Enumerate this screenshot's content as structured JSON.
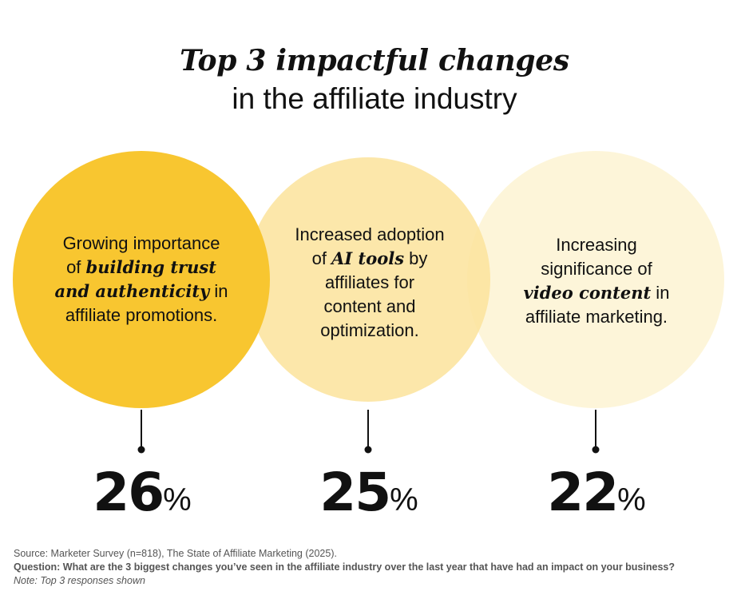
{
  "title": {
    "line1": "Top 3 impactful changes",
    "line2": "in the affiliate industry"
  },
  "chart_data": {
    "type": "bubble",
    "unit": "%",
    "categories": [
      "Growing importance of building trust and authenticity in affiliate promotions.",
      "Increased adoption of AI tools by affiliates for content and optimization.",
      "Increasing significance of video content in affiliate marketing."
    ],
    "values": [
      26,
      25,
      22
    ],
    "colors": [
      "#F8C630",
      "#FBE39B",
      "#FDF2D0"
    ]
  },
  "bubbles": [
    {
      "text_lines": [
        [
          {
            "t": "Growing importance"
          }
        ],
        [
          {
            "t": "of "
          },
          {
            "t": "building trust",
            "em": true
          }
        ],
        [
          {
            "t": "and authenticity",
            "em": true
          },
          {
            "t": " in"
          }
        ],
        [
          {
            "t": "affiliate promotions."
          }
        ]
      ],
      "value_label": "26",
      "percent_sign": "%"
    },
    {
      "text_lines": [
        [
          {
            "t": "Increased adoption"
          }
        ],
        [
          {
            "t": "of "
          },
          {
            "t": "AI tools",
            "em": true
          },
          {
            "t": " by"
          }
        ],
        [
          {
            "t": "affiliates for"
          }
        ],
        [
          {
            "t": "content and"
          }
        ],
        [
          {
            "t": "optimization."
          }
        ]
      ],
      "value_label": "25",
      "percent_sign": "%"
    },
    {
      "text_lines": [
        [
          {
            "t": "Increasing"
          }
        ],
        [
          {
            "t": "significance of"
          }
        ],
        [
          {
            "t": "video content",
            "em": true
          },
          {
            "t": " in"
          }
        ],
        [
          {
            "t": "affiliate marketing."
          }
        ]
      ],
      "value_label": "22",
      "percent_sign": "%"
    }
  ],
  "footer": {
    "source": "Source: Marketer Survey (n=818), The State of Affiliate Marketing (2025).",
    "question": "Question: What are the 3 biggest changes you’ve seen in the affiliate industry over the last year that have had an impact on your business?",
    "note": "Note: Top 3 responses shown"
  }
}
